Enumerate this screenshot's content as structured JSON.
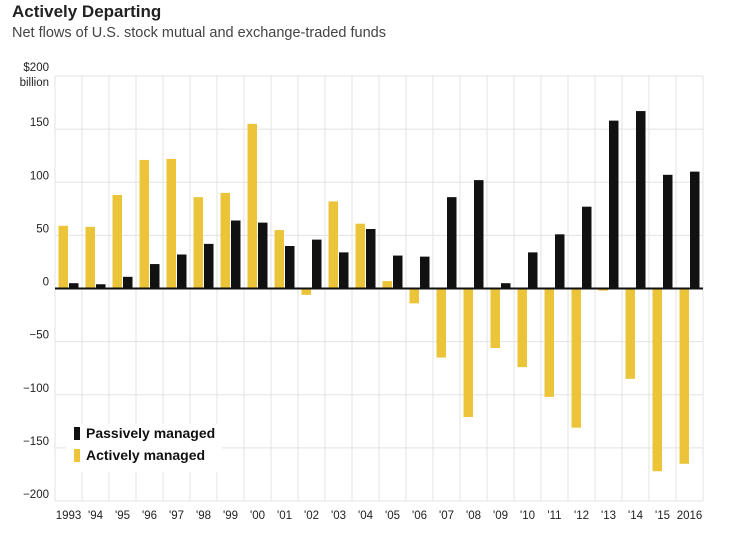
{
  "title": "Actively Departing",
  "subtitle": "Net flows of U.S. stock mutual and exchange-traded funds",
  "chart_data": {
    "type": "bar",
    "title": "Actively Departing",
    "subtitle": "Net flows of U.S. stock mutual and exchange-traded funds",
    "ylabel_top": "$200",
    "ylabel_unit": "billion",
    "ylim": [
      -200,
      200
    ],
    "yticks": [
      {
        "value": 200,
        "label": "$200"
      },
      {
        "value": 150,
        "label": "150"
      },
      {
        "value": 100,
        "label": "100"
      },
      {
        "value": 50,
        "label": "50"
      },
      {
        "value": 0,
        "label": "0"
      },
      {
        "value": -50,
        "label": "−50"
      },
      {
        "value": -100,
        "label": "−100"
      },
      {
        "value": -150,
        "label": "−150"
      },
      {
        "value": -200,
        "label": "−200"
      }
    ],
    "categories": [
      "1993",
      "'94",
      "'95",
      "'96",
      "'97",
      "'98",
      "'99",
      "'00",
      "'01",
      "'02",
      "'03",
      "'04",
      "'05",
      "'06",
      "'07",
      "'08",
      "'09",
      "'10",
      "'11",
      "'12",
      "'13",
      "'14",
      "'15",
      "2016"
    ],
    "grid": true,
    "legend_position": "bottom-left",
    "series": [
      {
        "name": "Passively managed",
        "color": "#111111",
        "values": [
          5,
          4,
          11,
          23,
          32,
          42,
          64,
          62,
          40,
          46,
          34,
          56,
          31,
          30,
          86,
          102,
          5,
          34,
          51,
          77,
          158,
          167,
          107,
          110
        ]
      },
      {
        "name": "Actively managed",
        "color": "#ebc43a",
        "values": [
          59,
          58,
          88,
          121,
          122,
          86,
          90,
          155,
          55,
          -6,
          82,
          61,
          7,
          -14,
          -65,
          -121,
          -56,
          -74,
          -102,
          -131,
          -2,
          -85,
          -172,
          -165
        ]
      }
    ]
  }
}
